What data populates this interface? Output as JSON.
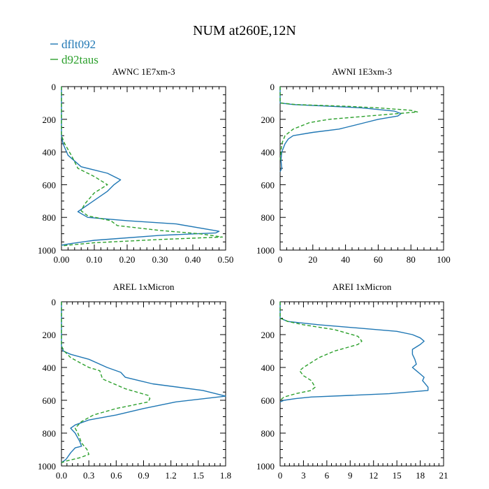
{
  "figure": {
    "title": "NUM at260E,12N",
    "legend": [
      {
        "name": "dflt092",
        "color": "#1f77b4",
        "dash": "solid"
      },
      {
        "name": "d92taus",
        "color": "#2ca02c",
        "dash": "dashed"
      }
    ]
  },
  "chart_data": [
    {
      "type": "line",
      "title": "AWNC  1E7xm-3",
      "ylim": [
        1000,
        0
      ],
      "yticks": [
        0,
        200,
        400,
        600,
        800,
        1000
      ],
      "yticklabels": [
        "0",
        "200",
        "400",
        "600",
        "800",
        "1000"
      ],
      "xlim": [
        0,
        0.5
      ],
      "xticks": [
        0,
        0.1,
        0.2,
        0.3,
        0.4,
        0.5
      ],
      "xticklabels": [
        "0.00",
        "0.10",
        "0.20",
        "0.30",
        "0.40",
        "0.50"
      ],
      "series": [
        {
          "name": "dflt092",
          "points": [
            [
              0,
              0
            ],
            [
              0,
              300
            ],
            [
              0.005,
              350
            ],
            [
              0.02,
              420
            ],
            [
              0.06,
              490
            ],
            [
              0.14,
              530
            ],
            [
              0.18,
              570
            ],
            [
              0.16,
              600
            ],
            [
              0.14,
              640
            ],
            [
              0.05,
              765
            ],
            [
              0.08,
              800
            ],
            [
              0.2,
              820
            ],
            [
              0.35,
              840
            ],
            [
              0.48,
              885
            ],
            [
              0.47,
              895
            ],
            [
              0.3,
              910
            ],
            [
              0.1,
              940
            ],
            [
              0.03,
              960
            ],
            [
              0,
              970
            ]
          ]
        },
        {
          "name": "d92taus",
          "points": [
            [
              0,
              0
            ],
            [
              0,
              300
            ],
            [
              0.01,
              350
            ],
            [
              0.03,
              420
            ],
            [
              0.05,
              500
            ],
            [
              0.1,
              550
            ],
            [
              0.14,
              600
            ],
            [
              0.1,
              650
            ],
            [
              0.07,
              720
            ],
            [
              0.06,
              760
            ],
            [
              0.08,
              790
            ],
            [
              0.15,
              820
            ],
            [
              0.17,
              850
            ],
            [
              0.3,
              880
            ],
            [
              0.42,
              900
            ],
            [
              0.49,
              920
            ],
            [
              0.3,
              935
            ],
            [
              0.1,
              955
            ],
            [
              0.02,
              970
            ],
            [
              0,
              975
            ]
          ]
        }
      ]
    },
    {
      "type": "line",
      "title": "AWNI  1E3xm-3",
      "ylim": [
        1000,
        0
      ],
      "yticks": [
        0,
        200,
        400,
        600,
        800,
        1000
      ],
      "yticklabels": [
        "0",
        "200",
        "400",
        "600",
        "800",
        "1000"
      ],
      "xlim": [
        0,
        100
      ],
      "xticks": [
        0,
        20,
        40,
        60,
        80,
        100
      ],
      "xticklabels": [
        "0",
        "20",
        "40",
        "60",
        "80",
        "100"
      ],
      "series": [
        {
          "name": "dflt092",
          "points": [
            [
              0,
              0
            ],
            [
              0,
              100
            ],
            [
              8,
              110
            ],
            [
              30,
              120
            ],
            [
              50,
              130
            ],
            [
              70,
              150
            ],
            [
              74,
              165
            ],
            [
              72,
              180
            ],
            [
              60,
              200
            ],
            [
              52,
              220
            ],
            [
              40,
              250
            ],
            [
              36,
              260
            ],
            [
              20,
              280
            ],
            [
              8,
              300
            ],
            [
              5,
              320
            ],
            [
              3,
              350
            ],
            [
              1,
              400
            ],
            [
              0.5,
              450
            ],
            [
              1,
              500
            ],
            [
              0,
              520
            ]
          ]
        },
        {
          "name": "d92taus",
          "points": [
            [
              0,
              0
            ],
            [
              0,
              100
            ],
            [
              10,
              110
            ],
            [
              40,
              120
            ],
            [
              60,
              130
            ],
            [
              80,
              145
            ],
            [
              84,
              155
            ],
            [
              60,
              175
            ],
            [
              30,
              200
            ],
            [
              18,
              220
            ],
            [
              8,
              260
            ],
            [
              3,
              300
            ],
            [
              1,
              350
            ],
            [
              0.5,
              400
            ],
            [
              0,
              450
            ]
          ]
        }
      ]
    },
    {
      "type": "line",
      "title": "AREL  1xMicron",
      "ylim": [
        1000,
        0
      ],
      "yticks": [
        0,
        200,
        400,
        600,
        800,
        1000
      ],
      "yticklabels": [
        "0",
        "200",
        "400",
        "600",
        "800",
        "1000"
      ],
      "xlim": [
        0,
        1.8
      ],
      "xticks": [
        0,
        0.3,
        0.6,
        0.9,
        1.2,
        1.5,
        1.8
      ],
      "xticklabels": [
        "0.0",
        "0.3",
        "0.6",
        "0.9",
        "1.2",
        "1.5",
        "1.8"
      ],
      "series": [
        {
          "name": "dflt092",
          "points": [
            [
              0,
              0
            ],
            [
              0,
              270
            ],
            [
              0.02,
              300
            ],
            [
              0.1,
              320
            ],
            [
              0.3,
              350
            ],
            [
              0.5,
              400
            ],
            [
              0.65,
              430
            ],
            [
              0.7,
              460
            ],
            [
              0.85,
              480
            ],
            [
              1.0,
              500
            ],
            [
              1.55,
              540
            ],
            [
              1.8,
              575
            ],
            [
              1.25,
              610
            ],
            [
              0.9,
              650
            ],
            [
              0.6,
              690
            ],
            [
              0.3,
              720
            ],
            [
              0.15,
              750
            ],
            [
              0.1,
              770
            ],
            [
              0.15,
              800
            ],
            [
              0.2,
              850
            ],
            [
              0.22,
              880
            ],
            [
              0.15,
              890
            ],
            [
              0.1,
              920
            ],
            [
              0.05,
              960
            ],
            [
              0,
              980
            ]
          ]
        },
        {
          "name": "d92taus",
          "points": [
            [
              0,
              0
            ],
            [
              0,
              270
            ],
            [
              0.03,
              300
            ],
            [
              0.1,
              340
            ],
            [
              0.2,
              370
            ],
            [
              0.3,
              400
            ],
            [
              0.42,
              420
            ],
            [
              0.45,
              470
            ],
            [
              0.7,
              530
            ],
            [
              0.95,
              570
            ],
            [
              0.97,
              590
            ],
            [
              0.95,
              610
            ],
            [
              0.6,
              650
            ],
            [
              0.35,
              690
            ],
            [
              0.22,
              730
            ],
            [
              0.15,
              770
            ],
            [
              0.18,
              800
            ],
            [
              0.22,
              860
            ],
            [
              0.28,
              900
            ],
            [
              0.3,
              930
            ],
            [
              0.2,
              950
            ],
            [
              0.05,
              970
            ],
            [
              0,
              980
            ]
          ]
        }
      ]
    },
    {
      "type": "line",
      "title": "AREI  1xMicron",
      "ylim": [
        1000,
        0
      ],
      "yticks": [
        0,
        200,
        400,
        600,
        800,
        1000
      ],
      "yticklabels": [
        "0",
        "200",
        "400",
        "600",
        "800",
        "1000"
      ],
      "xlim": [
        0,
        21
      ],
      "xticks": [
        0,
        3,
        6,
        9,
        12,
        15,
        18,
        21
      ],
      "xticklabels": [
        "0",
        "3",
        "6",
        "9",
        "12",
        "15",
        "18",
        "21"
      ],
      "series": [
        {
          "name": "dflt092",
          "points": [
            [
              0,
              0
            ],
            [
              0,
              100
            ],
            [
              1,
              120
            ],
            [
              5,
              140
            ],
            [
              10,
              160
            ],
            [
              15,
              180
            ],
            [
              17,
              200
            ],
            [
              18,
              220
            ],
            [
              18.5,
              240
            ],
            [
              18,
              260
            ],
            [
              17,
              290
            ],
            [
              17,
              320
            ],
            [
              17.3,
              350
            ],
            [
              17.5,
              380
            ],
            [
              17,
              400
            ],
            [
              17.5,
              420
            ],
            [
              18,
              440
            ],
            [
              18.5,
              460
            ],
            [
              18.3,
              480
            ],
            [
              19,
              520
            ],
            [
              19,
              540
            ],
            [
              14,
              560
            ],
            [
              9,
              570
            ],
            [
              4,
              580
            ],
            [
              2,
              590
            ],
            [
              0.5,
              600
            ],
            [
              0,
              610
            ]
          ]
        },
        {
          "name": "d92taus",
          "points": [
            [
              0,
              0
            ],
            [
              0,
              100
            ],
            [
              1,
              120
            ],
            [
              3,
              140
            ],
            [
              7,
              170
            ],
            [
              10,
              210
            ],
            [
              10.5,
              240
            ],
            [
              10,
              260
            ],
            [
              7,
              300
            ],
            [
              5,
              340
            ],
            [
              3,
              400
            ],
            [
              2.5,
              420
            ],
            [
              3,
              450
            ],
            [
              4,
              480
            ],
            [
              4.5,
              520
            ],
            [
              4,
              540
            ],
            [
              2,
              560
            ],
            [
              0.5,
              580
            ],
            [
              0,
              600
            ]
          ]
        }
      ]
    }
  ]
}
